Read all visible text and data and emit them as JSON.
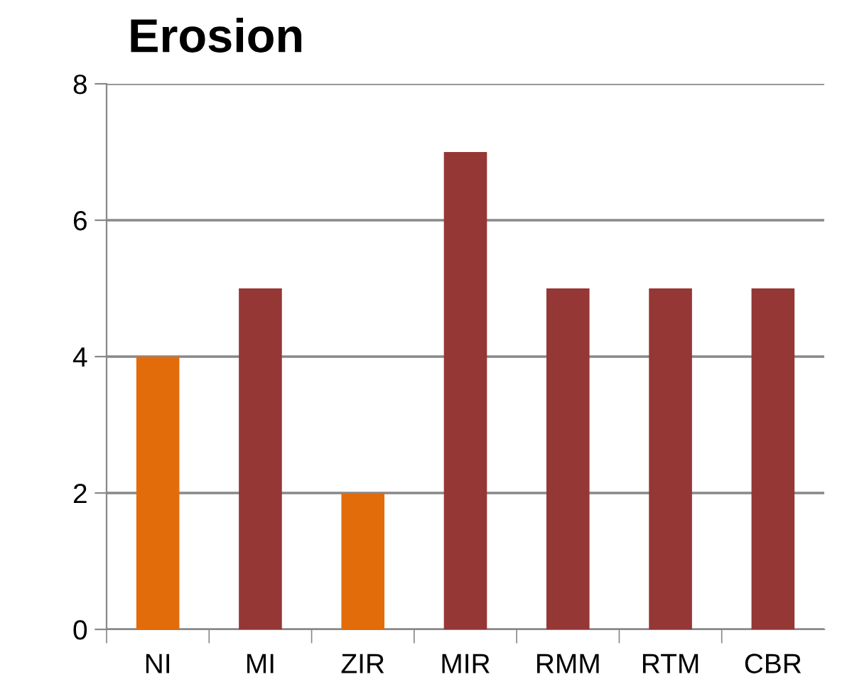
{
  "chart_data": {
    "type": "bar",
    "title": "Erosion",
    "categories": [
      "NI",
      "MI",
      "ZIR",
      "MIR",
      "RMM",
      "RTM",
      "CBR"
    ],
    "values": [
      4,
      5,
      2,
      7,
      5,
      5,
      5
    ],
    "colors": [
      "#e36c0a",
      "#953735",
      "#e36c0a",
      "#953735",
      "#953735",
      "#953735",
      "#953735"
    ],
    "ylim": [
      0,
      8
    ],
    "yticks": [
      0,
      2,
      4,
      6,
      8
    ],
    "grid": "y",
    "legend": false
  }
}
